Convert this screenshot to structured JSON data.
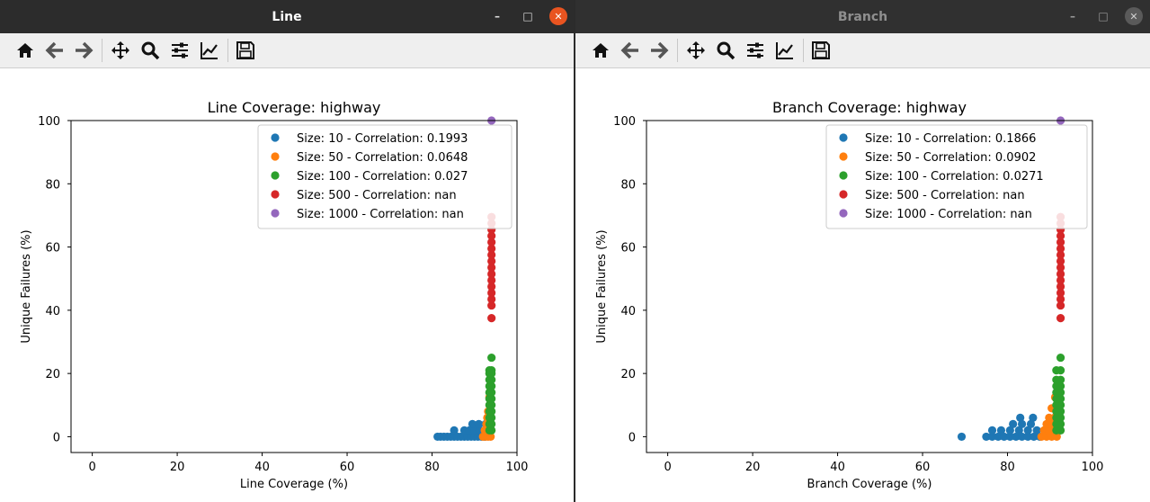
{
  "windows": [
    {
      "title": "Line",
      "active": true,
      "controls": {
        "minimize": "–",
        "maximize": "□",
        "close": "✕"
      },
      "toolbar_icons": [
        "home-icon",
        "back-arrow-icon",
        "forward-arrow-icon",
        "pan-move-icon",
        "zoom-magnifier-icon",
        "configure-subplots-icon",
        "edit-axes-icon",
        "save-floppy-icon"
      ]
    },
    {
      "title": "Branch",
      "active": false,
      "controls": {
        "minimize": "–",
        "maximize": "□",
        "close": "✕"
      },
      "toolbar_icons": [
        "home-icon",
        "back-arrow-icon",
        "forward-arrow-icon",
        "pan-move-icon",
        "zoom-magnifier-icon",
        "configure-subplots-icon",
        "edit-axes-icon",
        "save-floppy-icon"
      ]
    }
  ],
  "chart_data": [
    {
      "type": "scatter",
      "title": "Line Coverage: highway",
      "xlabel": "Line Coverage (%)",
      "ylabel": "Unique Failures (%)",
      "xlim": [
        -5,
        100
      ],
      "ylim": [
        -5,
        100
      ],
      "xticks": [
        0,
        20,
        40,
        60,
        80,
        100
      ],
      "yticks": [
        0,
        20,
        40,
        60,
        80,
        100
      ],
      "legend_position": "top-right",
      "grid": false,
      "series": [
        {
          "name": "Size: 10 - Correlation: 0.1993",
          "color": "#1f77b4",
          "x": [
            81.3,
            82.0,
            82.8,
            83.6,
            84.4,
            85.2,
            86.0,
            86.8,
            87.6,
            88.4,
            89.2,
            90.0,
            90.8,
            91.6,
            92.4,
            85.2,
            87.6,
            88.8,
            90.0,
            91.2,
            92.4,
            89.5,
            91.0,
            92.6
          ],
          "y": [
            0,
            0,
            0,
            0,
            0,
            0,
            0,
            0,
            0,
            0,
            0,
            0,
            0,
            0,
            0,
            2.0,
            2.0,
            2.0,
            2.0,
            2.0,
            2.0,
            4.0,
            4.0,
            4.0
          ]
        },
        {
          "name": "Size: 50 - Correlation: 0.0648",
          "color": "#ff7f0e",
          "x": [
            92.0,
            92.6,
            93.2,
            93.8,
            92.4,
            93.0,
            93.6,
            92.8,
            93.4,
            93.0,
            93.6,
            93.2,
            93.5
          ],
          "y": [
            0,
            0,
            0,
            0,
            2.0,
            2.0,
            2.0,
            4.0,
            4.0,
            6.0,
            6.0,
            8.0,
            12.5
          ]
        },
        {
          "name": "Size: 100 - Correlation: 0.027",
          "color": "#2ca02c",
          "x": [
            93.5,
            94.0,
            93.5,
            94.0,
            93.5,
            94.0,
            93.5,
            94.0,
            93.5,
            94.0,
            93.5,
            94.0,
            93.5,
            94.0,
            93.5,
            94.0,
            93.5,
            94.0,
            93.5,
            94.0,
            93.5,
            94.0,
            94.0
          ],
          "y": [
            2.0,
            2.0,
            4.0,
            4.0,
            6.0,
            6.0,
            8.0,
            8.0,
            10.0,
            10.0,
            12.0,
            12.0,
            14.0,
            14.0,
            16.0,
            16.0,
            18.0,
            18.0,
            20.0,
            20.0,
            21.0,
            21.0,
            25.0
          ]
        },
        {
          "name": "Size: 500 - Correlation: nan",
          "color": "#d62728",
          "x": [
            94.0,
            94.0,
            94.0,
            94.0,
            94.0,
            94.0,
            94.0,
            94.0,
            94.0,
            94.0,
            94.0,
            94.0,
            94.0,
            94.0,
            94.0,
            94.0
          ],
          "y": [
            37.5,
            41.5,
            43.5,
            45.5,
            47.5,
            49.5,
            51.5,
            53.5,
            55.5,
            57.5,
            59.5,
            61.5,
            63.5,
            65.5,
            67.5,
            69.5
          ]
        },
        {
          "name": "Size: 1000 - Correlation: nan",
          "color": "#9467bd",
          "x": [
            94.0
          ],
          "y": [
            100
          ]
        }
      ]
    },
    {
      "type": "scatter",
      "title": "Branch Coverage: highway",
      "xlabel": "Branch Coverage (%)",
      "ylabel": "Unique Failures (%)",
      "xlim": [
        -5,
        100
      ],
      "ylim": [
        -5,
        100
      ],
      "xticks": [
        0,
        20,
        40,
        60,
        80,
        100
      ],
      "yticks": [
        0,
        20,
        40,
        60,
        80,
        100
      ],
      "legend_position": "top-right",
      "grid": false,
      "series": [
        {
          "name": "Size: 10 - Correlation: 0.1866",
          "color": "#1f77b4",
          "x": [
            69.2,
            75.0,
            76.4,
            77.8,
            79.2,
            80.6,
            82.0,
            83.4,
            84.8,
            86.2,
            87.6,
            76.4,
            78.5,
            80.6,
            82.7,
            84.8,
            86.9,
            81.3,
            83.4,
            85.5,
            83.0,
            86.0
          ],
          "y": [
            0,
            0,
            0,
            0,
            0,
            0,
            0,
            0,
            0,
            0,
            0,
            2.0,
            2.0,
            2.0,
            2.0,
            2.0,
            2.0,
            4.0,
            4.0,
            4.0,
            6.0,
            6.0
          ]
        },
        {
          "name": "Size: 50 - Correlation: 0.0902",
          "color": "#ff7f0e",
          "x": [
            88.0,
            89.2,
            90.4,
            91.6,
            88.6,
            89.8,
            91.0,
            89.2,
            90.4,
            91.6,
            89.8,
            91.0,
            90.4,
            91.2
          ],
          "y": [
            0,
            0,
            0,
            0,
            2.0,
            2.0,
            2.0,
            4.0,
            4.0,
            4.0,
            6.0,
            6.0,
            9.0,
            12.5
          ]
        },
        {
          "name": "Size: 100 - Correlation: 0.0271",
          "color": "#2ca02c",
          "x": [
            91.5,
            92.5,
            91.5,
            92.5,
            91.5,
            92.5,
            91.5,
            92.5,
            91.5,
            92.5,
            91.5,
            92.5,
            91.5,
            92.5,
            91.5,
            92.5,
            91.5,
            92.5,
            91.5,
            92.5,
            92.5
          ],
          "y": [
            2.0,
            2.0,
            4.0,
            4.0,
            6.0,
            6.0,
            8.0,
            8.0,
            10.0,
            10.0,
            12.0,
            12.0,
            14.0,
            14.0,
            16.0,
            16.0,
            18.0,
            18.0,
            21.0,
            21.0,
            25.0
          ]
        },
        {
          "name": "Size: 500 - Correlation: nan",
          "color": "#d62728",
          "x": [
            92.5,
            92.5,
            92.5,
            92.5,
            92.5,
            92.5,
            92.5,
            92.5,
            92.5,
            92.5,
            92.5,
            92.5,
            92.5,
            92.5,
            92.5,
            92.5
          ],
          "y": [
            37.5,
            41.5,
            43.5,
            45.5,
            47.5,
            49.5,
            51.5,
            53.5,
            55.5,
            57.5,
            59.5,
            61.5,
            63.5,
            65.5,
            67.5,
            69.5
          ]
        },
        {
          "name": "Size: 1000 - Correlation: nan",
          "color": "#9467bd",
          "x": [
            92.5
          ],
          "y": [
            100
          ]
        }
      ]
    }
  ]
}
